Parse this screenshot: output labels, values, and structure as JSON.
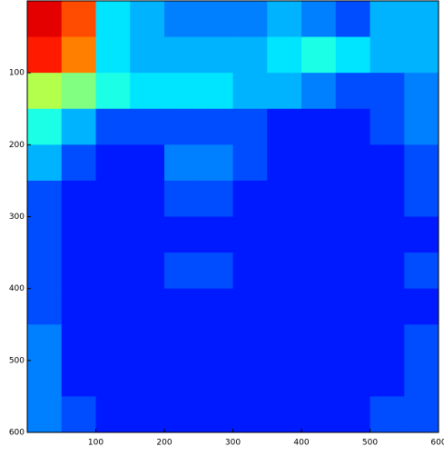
{
  "chart_data": {
    "type": "heatmap",
    "colormap": "jet",
    "clim": [
      0,
      1
    ],
    "xlim": [
      0,
      600
    ],
    "ylim": [
      0,
      600
    ],
    "y_reversed": true,
    "xticks": [
      100,
      200,
      300,
      400,
      500,
      600
    ],
    "yticks": [
      100,
      200,
      300,
      400,
      500,
      600
    ],
    "values": [
      [
        0.9,
        0.8,
        0.35,
        0.3,
        0.25,
        0.25,
        0.25,
        0.3,
        0.25,
        0.2,
        0.3,
        0.3
      ],
      [
        0.85,
        0.75,
        0.35,
        0.3,
        0.3,
        0.3,
        0.3,
        0.35,
        0.4,
        0.35,
        0.3,
        0.3
      ],
      [
        0.55,
        0.5,
        0.4,
        0.35,
        0.35,
        0.35,
        0.3,
        0.3,
        0.25,
        0.2,
        0.2,
        0.25
      ],
      [
        0.4,
        0.3,
        0.2,
        0.2,
        0.2,
        0.2,
        0.2,
        0.15,
        0.15,
        0.15,
        0.2,
        0.25
      ],
      [
        0.3,
        0.2,
        0.15,
        0.15,
        0.25,
        0.25,
        0.2,
        0.15,
        0.15,
        0.15,
        0.15,
        0.2
      ],
      [
        0.2,
        0.15,
        0.15,
        0.15,
        0.2,
        0.2,
        0.15,
        0.15,
        0.15,
        0.15,
        0.15,
        0.2
      ],
      [
        0.2,
        0.15,
        0.15,
        0.15,
        0.15,
        0.15,
        0.15,
        0.15,
        0.15,
        0.15,
        0.15,
        0.15
      ],
      [
        0.2,
        0.15,
        0.15,
        0.15,
        0.2,
        0.2,
        0.15,
        0.15,
        0.15,
        0.15,
        0.15,
        0.2
      ],
      [
        0.2,
        0.15,
        0.15,
        0.15,
        0.15,
        0.15,
        0.15,
        0.15,
        0.15,
        0.15,
        0.15,
        0.15
      ],
      [
        0.25,
        0.15,
        0.15,
        0.15,
        0.15,
        0.15,
        0.15,
        0.15,
        0.15,
        0.15,
        0.15,
        0.2
      ],
      [
        0.25,
        0.15,
        0.15,
        0.15,
        0.15,
        0.15,
        0.15,
        0.15,
        0.15,
        0.15,
        0.15,
        0.2
      ],
      [
        0.25,
        0.2,
        0.15,
        0.15,
        0.15,
        0.15,
        0.15,
        0.15,
        0.15,
        0.15,
        0.2,
        0.2
      ]
    ]
  }
}
